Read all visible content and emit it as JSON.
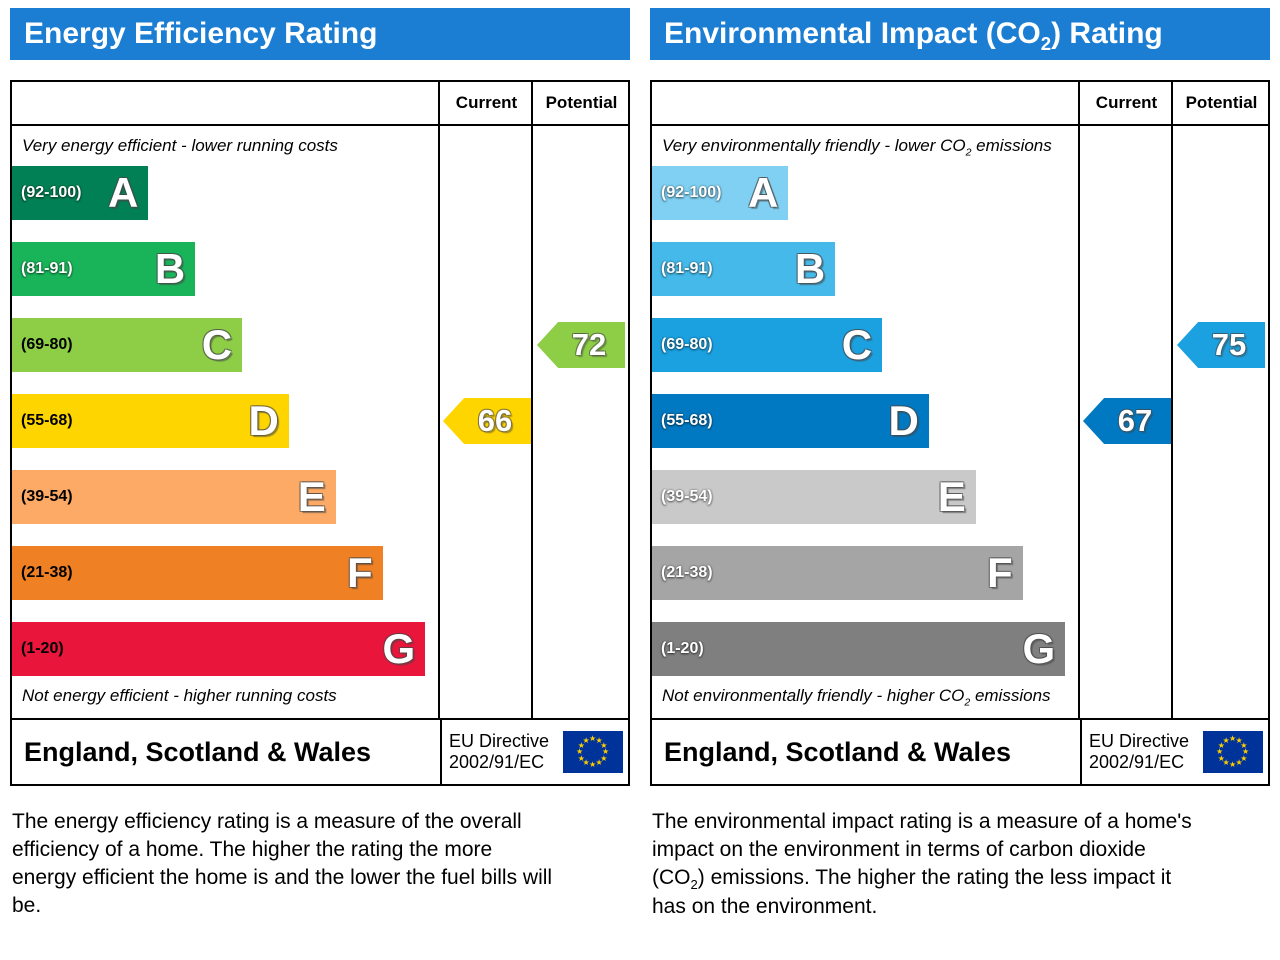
{
  "colors": {
    "header_blue": "#1b7ed3",
    "eu_flag_background": "#003399",
    "eu_flag_star": "#ffcc00"
  },
  "chart_data": [
    {
      "type": "bar",
      "chart": "energy-efficiency-rating",
      "title": {
        "pre": "Energy Efficiency Rating",
        "sub": "",
        "post": ""
      },
      "column_headers": {
        "current": "Current",
        "potential": "Potential"
      },
      "top_note": {
        "pre": "Very energy efficient - lower running costs",
        "sub": "",
        "post": ""
      },
      "bottom_note": {
        "pre": "Not energy efficient - higher running costs",
        "sub": "",
        "post": ""
      },
      "bands": [
        {
          "range": "(92-100)",
          "letter": "A",
          "color": "#008054",
          "range_color": "#ffffff",
          "width_pct": 32
        },
        {
          "range": "(81-91)",
          "letter": "B",
          "color": "#19b459",
          "range_color": "#ffffff",
          "width_pct": 43
        },
        {
          "range": "(69-80)",
          "letter": "C",
          "color": "#8dce46",
          "range_color": "#000000",
          "width_pct": 54
        },
        {
          "range": "(55-68)",
          "letter": "D",
          "color": "#ffd500",
          "range_color": "#000000",
          "width_pct": 65
        },
        {
          "range": "(39-54)",
          "letter": "E",
          "color": "#fcaa65",
          "range_color": "#000000",
          "width_pct": 76
        },
        {
          "range": "(21-38)",
          "letter": "F",
          "color": "#ef8023",
          "range_color": "#000000",
          "width_pct": 87
        },
        {
          "range": "(1-20)",
          "letter": "G",
          "color": "#e9153b",
          "range_color": "#000000",
          "width_pct": 97
        }
      ],
      "current": {
        "value": 66,
        "band_letter": "D",
        "band_index": 3,
        "color": "#ffd500"
      },
      "potential": {
        "value": 72,
        "band_letter": "C",
        "band_index": 2,
        "color": "#8dce46"
      },
      "footer": {
        "region": "England, Scotland & Wales",
        "directive_line1": "EU Directive",
        "directive_line2": "2002/91/EC"
      },
      "description": {
        "pre": "The energy efficiency rating is a measure of the overall efficiency of a home. The higher the rating the more energy efficient the home is and the lower the fuel bills will be.",
        "sub": "",
        "post": ""
      }
    },
    {
      "type": "bar",
      "chart": "environmental-impact-co2-rating",
      "title": {
        "pre": "Environmental Impact (CO",
        "sub": "2",
        "post": ") Rating"
      },
      "column_headers": {
        "current": "Current",
        "potential": "Potential"
      },
      "top_note": {
        "pre": "Very environmentally friendly - lower CO",
        "sub": "2",
        "post": " emissions"
      },
      "bottom_note": {
        "pre": "Not environmentally friendly - higher CO",
        "sub": "2",
        "post": " emissions"
      },
      "bands": [
        {
          "range": "(92-100)",
          "letter": "A",
          "color": "#7fd0f2",
          "range_color": "#ffffff",
          "width_pct": 32
        },
        {
          "range": "(81-91)",
          "letter": "B",
          "color": "#45b9e9",
          "range_color": "#ffffff",
          "width_pct": 43
        },
        {
          "range": "(69-80)",
          "letter": "C",
          "color": "#1ba0e0",
          "range_color": "#ffffff",
          "width_pct": 54
        },
        {
          "range": "(55-68)",
          "letter": "D",
          "color": "#0079c2",
          "range_color": "#ffffff",
          "width_pct": 65
        },
        {
          "range": "(39-54)",
          "letter": "E",
          "color": "#c9c9c9",
          "range_color": "#ffffff",
          "width_pct": 76
        },
        {
          "range": "(21-38)",
          "letter": "F",
          "color": "#a5a5a5",
          "range_color": "#ffffff",
          "width_pct": 87
        },
        {
          "range": "(1-20)",
          "letter": "G",
          "color": "#7f7f7f",
          "range_color": "#ffffff",
          "width_pct": 97
        }
      ],
      "current": {
        "value": 67,
        "band_letter": "D",
        "band_index": 3,
        "color": "#0079c2"
      },
      "potential": {
        "value": 75,
        "band_letter": "C",
        "band_index": 2,
        "color": "#1ba0e0"
      },
      "footer": {
        "region": "England, Scotland & Wales",
        "directive_line1": "EU Directive",
        "directive_line2": "2002/91/EC"
      },
      "description": {
        "pre": "The environmental impact rating is a measure of a home's impact on the environment in terms of carbon dioxide (CO",
        "sub": "2",
        "post": ") emissions. The higher the rating the less impact it has on the environment."
      }
    }
  ]
}
